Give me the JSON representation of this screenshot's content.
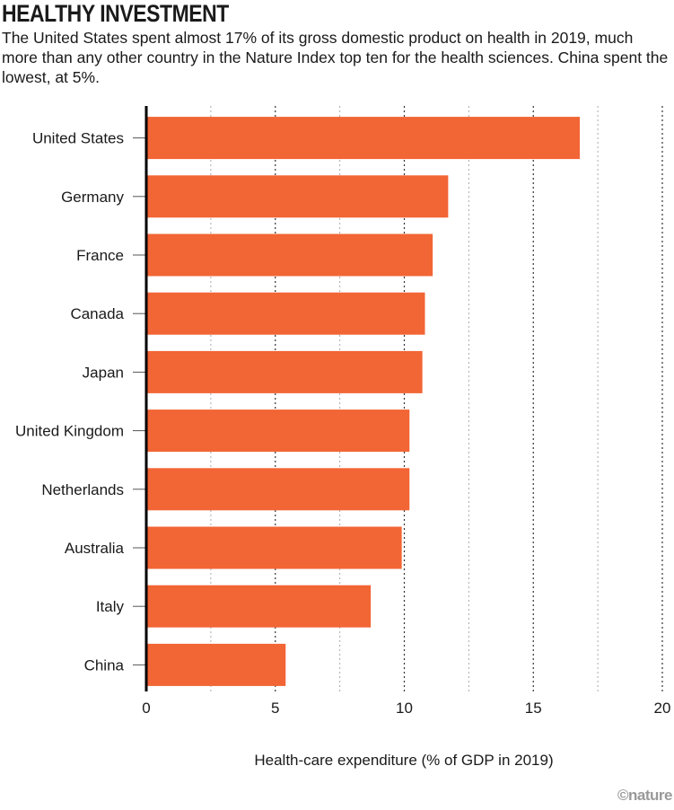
{
  "title": "HEALTHY INVESTMENT",
  "subtitle": "The United States spent almost 17% of its gross domestic product on health in 2019, much more than any other country in the Nature Index top ten for the health sciences. China spent the lowest, at 5%.",
  "logo": "©nature",
  "colors": {
    "bar": "#f26535",
    "grid": "#333333"
  },
  "chart_data": {
    "type": "bar",
    "orientation": "horizontal",
    "title": "HEALTHY INVESTMENT",
    "categories": [
      "United States",
      "Germany",
      "France",
      "Canada",
      "Japan",
      "United Kingdom",
      "Netherlands",
      "Australia",
      "Italy",
      "China"
    ],
    "values": [
      16.8,
      11.7,
      11.1,
      10.8,
      10.7,
      10.2,
      10.2,
      9.9,
      8.7,
      5.4
    ],
    "xlabel": "Health-care expenditure (% of GDP in 2019)",
    "ylabel": "",
    "xlim": [
      0,
      20
    ],
    "xticks": [
      "0",
      "5",
      "10",
      "15",
      "20"
    ],
    "grid": true
  }
}
